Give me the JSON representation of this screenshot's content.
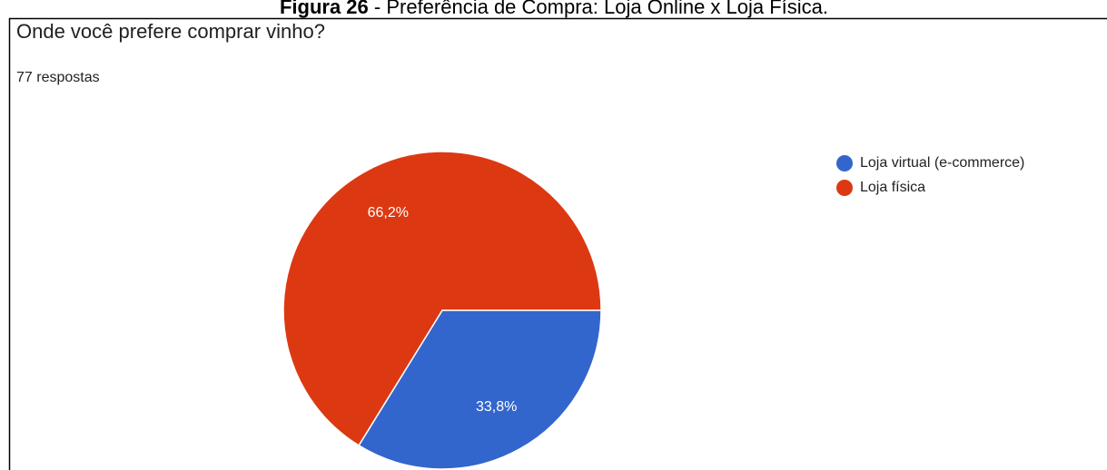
{
  "caption": {
    "label": "Figura 26",
    "text": " - Preferência de Compra: Loja Online x Loja Física."
  },
  "chart_data": {
    "type": "pie",
    "title": "Onde você prefere comprar vinho?",
    "subtitle": "77 respostas",
    "categories": [
      "Loja virtual (e-commerce)",
      "Loja física"
    ],
    "values": [
      33.8,
      66.2
    ],
    "value_labels": [
      "33,8%",
      "66,2%"
    ],
    "colors": [
      "#3366cc",
      "#dc3912"
    ],
    "start_angle": 90,
    "legend": "right"
  }
}
